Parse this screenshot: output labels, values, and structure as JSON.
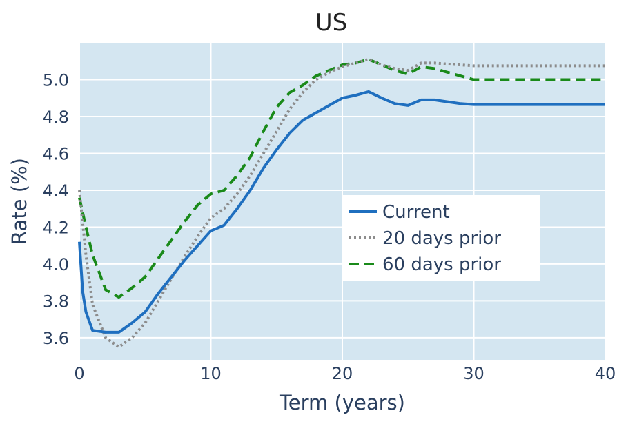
{
  "chart_data": {
    "type": "line",
    "title": "US",
    "xlabel": "Term (years)",
    "ylabel": "Rate (%)",
    "xlim": [
      0,
      40
    ],
    "ylim": [
      3.48,
      5.2
    ],
    "xticks": [
      0,
      10,
      20,
      30,
      40
    ],
    "xtick_labels": [
      "0",
      "10",
      "20",
      "30",
      "40"
    ],
    "yticks": [
      3.6,
      3.8,
      4.0,
      4.2,
      4.4,
      4.6,
      4.8,
      5.0
    ],
    "ytick_labels": [
      "3.6",
      "3.8",
      "4.0",
      "4.2",
      "4.4",
      "4.6",
      "4.8",
      "5.0"
    ],
    "grid": true,
    "legend_position": "center-right",
    "background": "#d4e6f1",
    "series": [
      {
        "name": "Current",
        "color": "#1f6fbf",
        "style": "solid",
        "x": [
          0,
          0.25,
          0.5,
          1,
          2,
          3,
          4,
          5,
          6,
          7,
          8,
          9,
          10,
          11,
          12,
          13,
          14,
          15,
          16,
          17,
          18,
          19,
          20,
          21,
          22,
          23,
          24,
          25,
          26,
          27,
          28,
          29,
          30,
          35,
          40
        ],
        "y": [
          4.12,
          3.85,
          3.74,
          3.64,
          3.63,
          3.63,
          3.68,
          3.74,
          3.84,
          3.93,
          4.02,
          4.1,
          4.18,
          4.21,
          4.3,
          4.4,
          4.52,
          4.62,
          4.71,
          4.78,
          4.82,
          4.86,
          4.9,
          4.915,
          4.935,
          4.9,
          4.87,
          4.86,
          4.89,
          4.89,
          4.88,
          4.87,
          4.865,
          4.865,
          4.865
        ]
      },
      {
        "name": "20 days prior",
        "color": "#8c8c8c",
        "style": "dotted",
        "x": [
          0,
          0.5,
          1,
          2,
          3,
          4,
          5,
          6,
          7,
          8,
          9,
          10,
          11,
          12,
          13,
          14,
          15,
          16,
          17,
          18,
          19,
          20,
          21,
          22,
          23,
          24,
          25,
          26,
          27,
          28,
          29,
          30,
          35,
          40
        ],
        "y": [
          4.4,
          4.05,
          3.78,
          3.6,
          3.55,
          3.6,
          3.68,
          3.8,
          3.92,
          4.04,
          4.15,
          4.25,
          4.3,
          4.38,
          4.48,
          4.6,
          4.72,
          4.84,
          4.93,
          5.0,
          5.04,
          5.07,
          5.09,
          5.11,
          5.08,
          5.06,
          5.05,
          5.09,
          5.09,
          5.085,
          5.08,
          5.075,
          5.075,
          5.075
        ]
      },
      {
        "name": "60 days prior",
        "color": "#1a8a1a",
        "style": "dashed",
        "x": [
          0,
          0.5,
          1,
          2,
          3,
          4,
          5,
          6,
          7,
          8,
          9,
          10,
          11,
          12,
          13,
          14,
          15,
          16,
          17,
          18,
          19,
          20,
          21,
          22,
          23,
          24,
          25,
          26,
          27,
          28,
          29,
          30,
          35,
          40
        ],
        "y": [
          4.36,
          4.2,
          4.05,
          3.86,
          3.82,
          3.87,
          3.93,
          4.03,
          4.13,
          4.23,
          4.32,
          4.38,
          4.4,
          4.48,
          4.58,
          4.72,
          4.85,
          4.93,
          4.97,
          5.02,
          5.05,
          5.08,
          5.09,
          5.11,
          5.08,
          5.05,
          5.03,
          5.07,
          5.06,
          5.04,
          5.02,
          5.0,
          5.0,
          5.0
        ]
      }
    ]
  }
}
